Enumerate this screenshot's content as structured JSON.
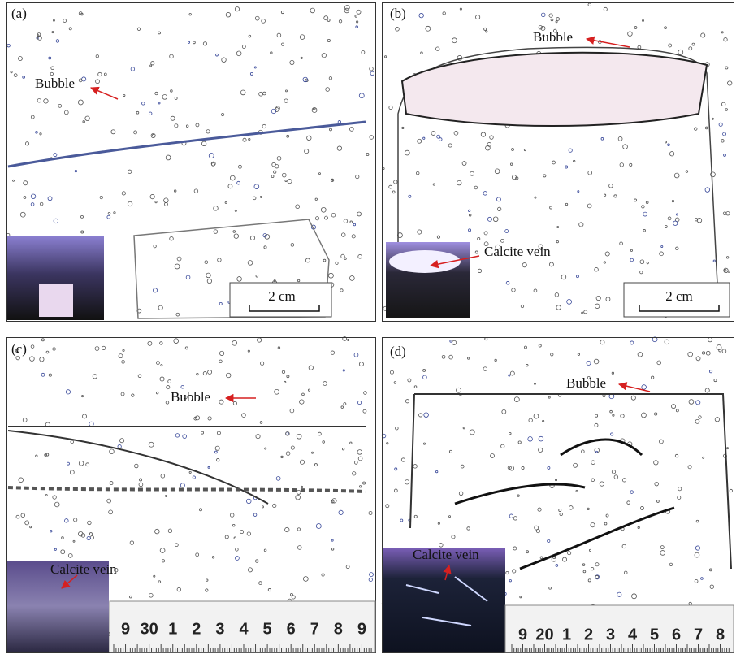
{
  "panels": [
    {
      "label": "(a)",
      "annotations": [
        {
          "text": "Bubble"
        }
      ],
      "scale_bar": "2 cm"
    },
    {
      "label": "(b)",
      "annotations": [
        {
          "text": "Bubble"
        },
        {
          "text": "Calcite vein"
        }
      ],
      "scale_bar": "2 cm"
    },
    {
      "label": "(c)",
      "annotations": [
        {
          "text": "Bubble"
        },
        {
          "text": "Calcite vein"
        }
      ],
      "ruler": [
        "9",
        "30",
        "1",
        "2",
        "3",
        "4",
        "5",
        "6",
        "7",
        "8",
        "9"
      ]
    },
    {
      "label": "(d)",
      "annotations": [
        {
          "text": "Bubble"
        },
        {
          "text": "Calcite vein"
        }
      ],
      "ruler": [
        "9",
        "20",
        "1",
        "2",
        "3",
        "4",
        "5",
        "6",
        "7",
        "8"
      ]
    }
  ]
}
